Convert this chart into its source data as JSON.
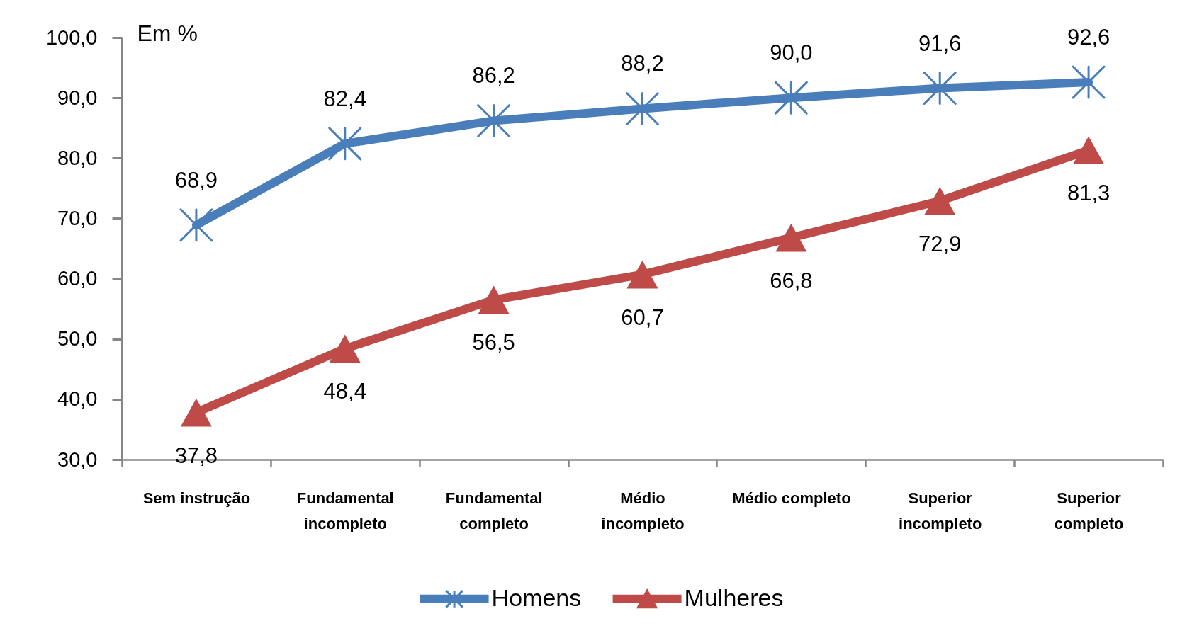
{
  "chart_data": {
    "type": "line",
    "ylabel": "Em %",
    "categories": [
      "Sem instrução",
      "Fundamental incompleto",
      "Fundamental completo",
      "Médio incompleto",
      "Médio completo",
      "Superior incompleto",
      "Superior completo"
    ],
    "series": [
      {
        "name": "Homens",
        "color": "#4a7ebb",
        "marker": "cross",
        "values": [
          68.9,
          82.4,
          86.2,
          88.2,
          90.0,
          91.6,
          92.6
        ],
        "value_labels": [
          "68,9",
          "82,4",
          "86,2",
          "88,2",
          "90,0",
          "91,6",
          "92,6"
        ]
      },
      {
        "name": "Mulheres",
        "color": "#be4b48",
        "marker": "triangle",
        "values": [
          37.8,
          48.4,
          56.5,
          60.7,
          66.8,
          72.9,
          81.3
        ],
        "value_labels": [
          "37,8",
          "48,4",
          "56,5",
          "60,7",
          "66,8",
          "72,9",
          "81,3"
        ]
      }
    ],
    "ylim": [
      30,
      100
    ],
    "yticks": [
      {
        "value": 30,
        "label": "30,0"
      },
      {
        "value": 40,
        "label": "40,0"
      },
      {
        "value": 50,
        "label": "50,0"
      },
      {
        "value": 60,
        "label": "60,0"
      },
      {
        "value": 70,
        "label": "70,0"
      },
      {
        "value": 80,
        "label": "80,0"
      },
      {
        "value": 90,
        "label": "90,0"
      },
      {
        "value": 100,
        "label": "100,0"
      }
    ],
    "legend": "bottom"
  }
}
